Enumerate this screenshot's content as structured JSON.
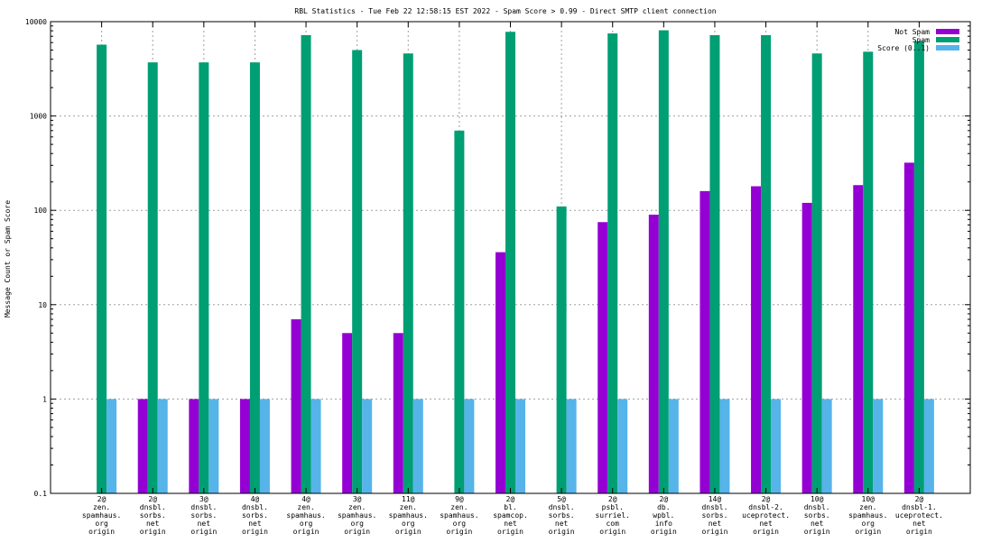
{
  "chart_data": {
    "type": "bar",
    "title": "RBL Statistics - Tue Feb 22 12:58:15 EST 2022 - Spam Score > 0.99 - Direct SMTP client connection",
    "ylabel": "Message Count or Spam Score",
    "xlabel": "",
    "yscale": "log",
    "ylim": [
      0.1,
      10000
    ],
    "yticks": [
      "0.1",
      "1",
      "10",
      "100",
      "1000",
      "10000"
    ],
    "grid": true,
    "legend_position": "top-right",
    "categories": [
      [
        "2@",
        "zen.",
        "spamhaus.",
        "org",
        "origin"
      ],
      [
        "2@",
        "dnsbl.",
        "sorbs.",
        "net",
        "origin"
      ],
      [
        "3@",
        "dnsbl.",
        "sorbs.",
        "net",
        "origin"
      ],
      [
        "4@",
        "dnsbl.",
        "sorbs.",
        "net",
        "origin"
      ],
      [
        "4@",
        "zen.",
        "spamhaus.",
        "org",
        "origin"
      ],
      [
        "3@",
        "zen.",
        "spamhaus.",
        "org",
        "origin"
      ],
      [
        "11@",
        "zen.",
        "spamhaus.",
        "org",
        "origin"
      ],
      [
        "9@",
        "zen.",
        "spamhaus.",
        "org",
        "origin"
      ],
      [
        "2@",
        "bl.",
        "spamcop.",
        "net",
        "origin"
      ],
      [
        "5@",
        "dnsbl.",
        "sorbs.",
        "net",
        "origin"
      ],
      [
        "2@",
        "psbl.",
        "surriel.",
        "com",
        "origin"
      ],
      [
        "2@",
        "db.",
        "wpbl.",
        "info",
        "origin"
      ],
      [
        "14@",
        "dnsbl.",
        "sorbs.",
        "net",
        "origin"
      ],
      [
        "2@",
        "dnsbl-2.",
        "uceprotect.",
        "net",
        "origin"
      ],
      [
        "10@",
        "dnsbl.",
        "sorbs.",
        "net",
        "origin"
      ],
      [
        "10@",
        "zen.",
        "spamhaus.",
        "org",
        "origin"
      ],
      [
        "2@",
        "dnsbl-1.",
        "uceprotect.",
        "net",
        "origin"
      ]
    ],
    "series": [
      {
        "name": "Not Spam",
        "color": "#9400d3",
        "values": [
          0,
          1,
          1,
          1,
          7,
          5,
          5,
          0,
          36,
          0,
          75,
          90,
          160,
          180,
          120,
          185,
          320
        ]
      },
      {
        "name": "Spam",
        "color": "#009e73",
        "values": [
          5700,
          3700,
          3700,
          3700,
          7200,
          5000,
          4600,
          700,
          7800,
          110,
          7500,
          8100,
          7200,
          7200,
          4600,
          4800,
          6200
        ]
      },
      {
        "name": "Score (0..1)",
        "color": "#56b4e9",
        "values": [
          1,
          1,
          1,
          1,
          1,
          1,
          1,
          1,
          1,
          1,
          1,
          1,
          1,
          1,
          1,
          1,
          1
        ]
      }
    ]
  }
}
